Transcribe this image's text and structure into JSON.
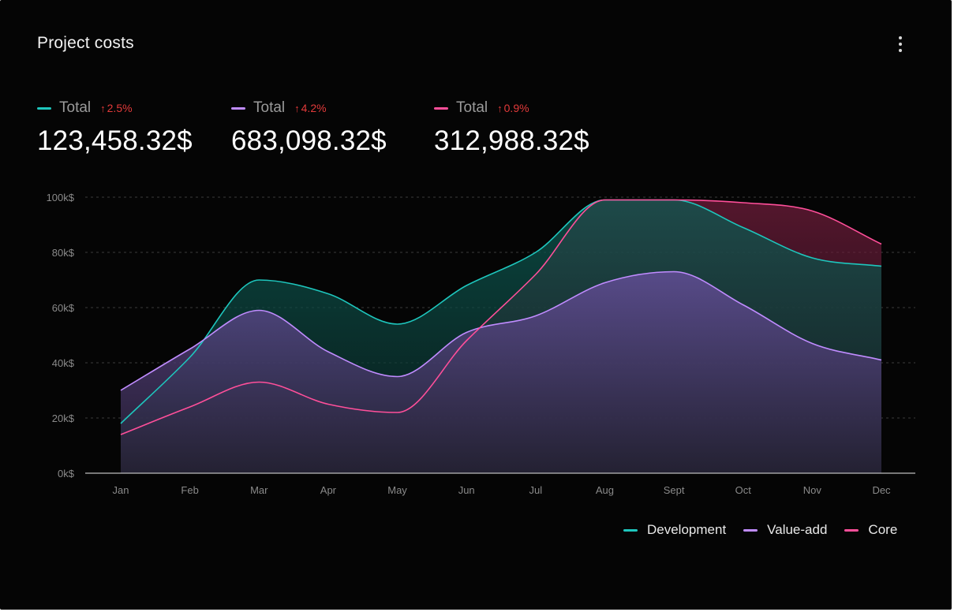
{
  "header": {
    "title": "Project costs",
    "menu_icon": "more-vertical-icon"
  },
  "stats": [
    {
      "label": "Total",
      "delta": "2.5%",
      "delta_icon": "arrow-up-icon",
      "value": "123,458.32$",
      "color": "#1ec6bd"
    },
    {
      "label": "Total",
      "delta": "4.2%",
      "delta_icon": "arrow-up-icon",
      "value": "683,098.32$",
      "color": "#c08cff"
    },
    {
      "label": "Total",
      "delta": "0.9%",
      "delta_icon": "arrow-up-icon",
      "value": "312,988.32$",
      "color": "#ff4f9a"
    }
  ],
  "colors": {
    "background": "#050505",
    "development": "#1ec6bd",
    "value_add": "#c08cff",
    "core": "#ff4f9a",
    "delta": "#e23a3a"
  },
  "chart_data": {
    "type": "area",
    "categories": [
      "Jan",
      "Feb",
      "Mar",
      "Apr",
      "May",
      "Jun",
      "Jul",
      "Aug",
      "Sept",
      "Oct",
      "Nov",
      "Dec"
    ],
    "series": [
      {
        "name": "Development",
        "color": "#1ec6bd",
        "values": [
          18,
          42,
          70,
          65,
          54,
          68,
          80,
          99,
          99,
          89,
          78,
          75
        ]
      },
      {
        "name": "Value-add",
        "color": "#c08cff",
        "values": [
          30,
          45,
          59,
          44,
          35,
          51,
          57,
          69,
          73,
          61,
          47,
          41
        ]
      },
      {
        "name": "Core",
        "color": "#ff4f9a",
        "values": [
          14,
          24,
          33,
          25,
          22,
          48,
          72,
          99,
          99,
          98,
          95,
          83
        ]
      }
    ],
    "yticks": [
      "0k$",
      "20k$",
      "40k$",
      "60k$",
      "80k$",
      "100k$"
    ],
    "ylim": [
      0,
      100
    ],
    "xlabel": "",
    "ylabel": "",
    "grid": true,
    "legend_position": "bottom-right"
  }
}
